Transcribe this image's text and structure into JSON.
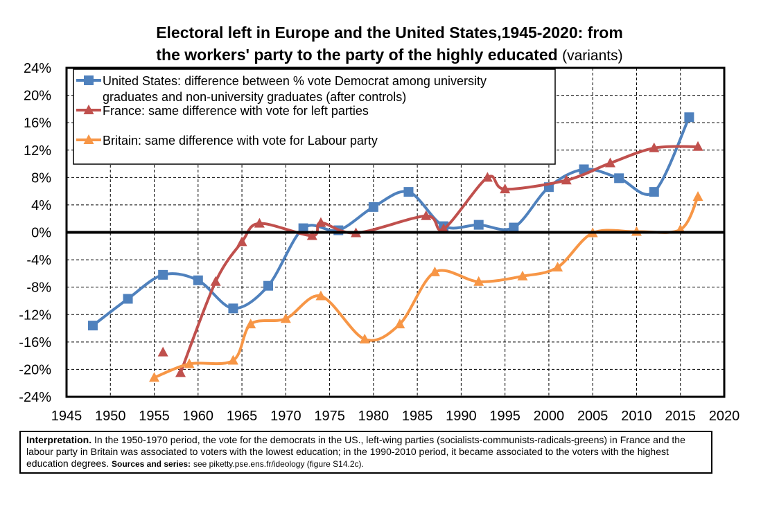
{
  "title": {
    "line1": "Electoral left in Europe and the United States,1945-2020: from",
    "line2": "the workers' party to the party of the highly educated",
    "variant": "(variants)"
  },
  "note": {
    "label": "Interpretation.",
    "text": "In the 1950-1970 period, the vote for the democrats in the US., left-wing parties (socialists-communists-radicals-greens) in France and the labour party in Britain was associated to voters with the lowest education; in the 1990-2010 period, it became associated to the voters with the highest education degrees.",
    "sources_label": "Sources and series:",
    "sources_text": "see piketty.pse.ens.fr/ideology (figure S14.2c)."
  },
  "chart_data": {
    "type": "line",
    "x_ticks": [
      1945,
      1950,
      1955,
      1960,
      1965,
      1970,
      1975,
      1980,
      1985,
      1990,
      1995,
      2000,
      2005,
      2010,
      2015,
      2020
    ],
    "y_ticks": [
      -24,
      -20,
      -16,
      -12,
      -8,
      -4,
      0,
      4,
      8,
      12,
      16,
      20,
      24
    ],
    "y_tick_labels": [
      "-24%",
      "-20%",
      "-16%",
      "-12%",
      "-8%",
      "-4%",
      "0%",
      "4%",
      "8%",
      "12%",
      "16%",
      "20%",
      "24%"
    ],
    "xlim": [
      1945,
      2020
    ],
    "ylim": [
      -24,
      24
    ],
    "grid": true,
    "legend_position": "top-left",
    "series": [
      {
        "name": "United States: difference between % vote Democrat among university graduates and non-university graduates (after controls)",
        "legend_lines": [
          "United States: difference between % vote Democrat among university",
          "graduates and non-university graduates (after controls)"
        ],
        "color": "#4f81bd",
        "marker": "square",
        "x": [
          1948,
          1952,
          1956,
          1960,
          1964,
          1968,
          1972,
          1976,
          1980,
          1984,
          1988,
          1992,
          1996,
          2000,
          2004,
          2008,
          2012,
          2016
        ],
        "y": [
          -13.6,
          -9.7,
          -6.2,
          -7.0,
          -11.1,
          -7.8,
          0.6,
          0.3,
          3.7,
          5.9,
          0.9,
          1.1,
          0.7,
          6.6,
          9.2,
          7.9,
          5.9,
          16.8
        ]
      },
      {
        "name": "France: same difference with vote for left parties",
        "legend_lines": [
          "France: same difference with vote for left parties"
        ],
        "color": "#c0504d",
        "marker": "triangle",
        "segments": [
          {
            "x": [
              1956
            ],
            "y": [
              -17.5
            ]
          },
          {
            "x": [
              1958,
              1962,
              1965,
              1967,
              1973,
              1974,
              1978,
              1986,
              1988,
              1993,
              1995,
              2002,
              2007,
              2012,
              2017
            ],
            "y": [
              -20.5,
              -7.2,
              -1.4,
              1.3,
              -0.5,
              1.4,
              -0.1,
              2.4,
              0.5,
              8.0,
              6.3,
              7.6,
              10.1,
              12.3,
              12.5
            ]
          }
        ]
      },
      {
        "name": "Britain: same difference with vote for Labour party",
        "legend_lines": [
          "Britain: same difference with vote for Labour party"
        ],
        "color": "#f79646",
        "marker": "triangle",
        "x": [
          1955,
          1959,
          1964,
          1966,
          1970,
          1974,
          1979,
          1983,
          1987,
          1992,
          1997,
          2001,
          2005,
          2010,
          2015,
          2017
        ],
        "y": [
          -21.2,
          -19.2,
          -18.7,
          -13.4,
          -12.6,
          -9.3,
          -15.6,
          -13.4,
          -5.8,
          -7.2,
          -6.4,
          -5.1,
          -0.1,
          0.1,
          0.4,
          5.2
        ]
      }
    ]
  }
}
